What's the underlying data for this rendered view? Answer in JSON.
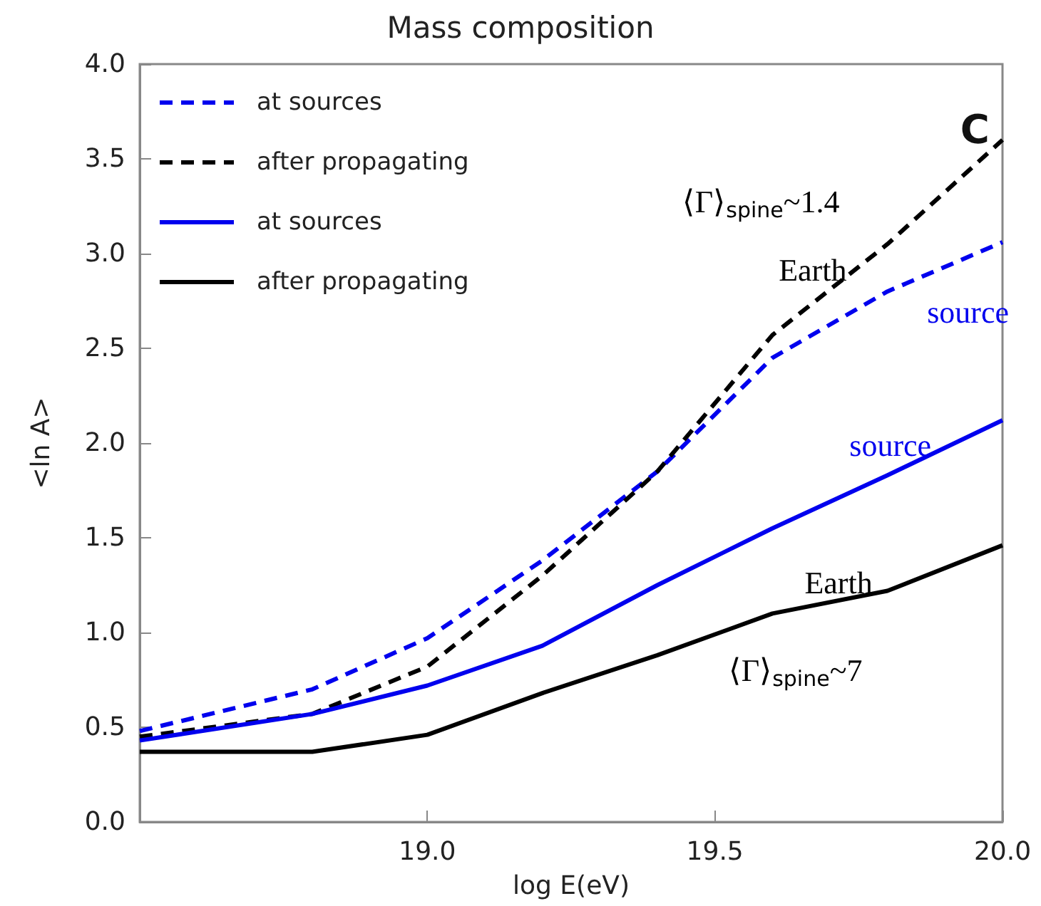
{
  "chart_data": {
    "type": "line",
    "title": "Mass composition",
    "xlabel": "log E(eV)",
    "ylabel": "<ln A>",
    "x": [
      18.5,
      18.8,
      19.0,
      19.2,
      19.4,
      19.6,
      19.8,
      20.0
    ],
    "xlim": [
      18.5,
      20.0
    ],
    "xticks": [
      {
        "value": 19,
        "label": "19.0"
      },
      19.5,
      {
        "value": 20,
        "label": "20.0"
      }
    ],
    "ylim": [
      0,
      4
    ],
    "yticks": [
      {
        "value": 0,
        "label": "0.0"
      },
      0.5,
      {
        "value": 1,
        "label": "1.0"
      },
      1.5,
      {
        "value": 2,
        "label": "2.0"
      },
      2.5,
      {
        "value": 3,
        "label": "3.0"
      },
      3.5,
      {
        "value": 4,
        "label": "4.0"
      }
    ],
    "grid": false,
    "legend": "top left",
    "marker": "none",
    "series": [
      {
        "name": "at sources",
        "color": "#0000ee",
        "line_style": "dashed",
        "values": [
          0.48,
          0.7,
          0.97,
          1.38,
          1.85,
          2.45,
          2.8,
          3.06
        ]
      },
      {
        "name": "after propagating",
        "color": "#000000",
        "line_style": "dashed",
        "values": [
          0.45,
          0.57,
          0.82,
          1.3,
          1.85,
          2.57,
          3.05,
          3.6
        ]
      },
      {
        "name": "at sources",
        "color": "#0000ee",
        "line_style": "solid",
        "values": [
          0.43,
          0.57,
          0.72,
          0.93,
          1.25,
          1.55,
          1.83,
          2.12
        ]
      },
      {
        "name": "after propagating",
        "color": "#000000",
        "line_style": "solid",
        "values": [
          0.37,
          0.37,
          0.46,
          0.68,
          0.88,
          1.1,
          1.22,
          1.46
        ]
      }
    ],
    "annotations": [
      "C",
      "⟨Γ⟩$_{spine}$~1.4",
      "Earth",
      "source",
      "source",
      "Earth",
      "⟨Γ⟩$_{spine}$~7"
    ]
  }
}
